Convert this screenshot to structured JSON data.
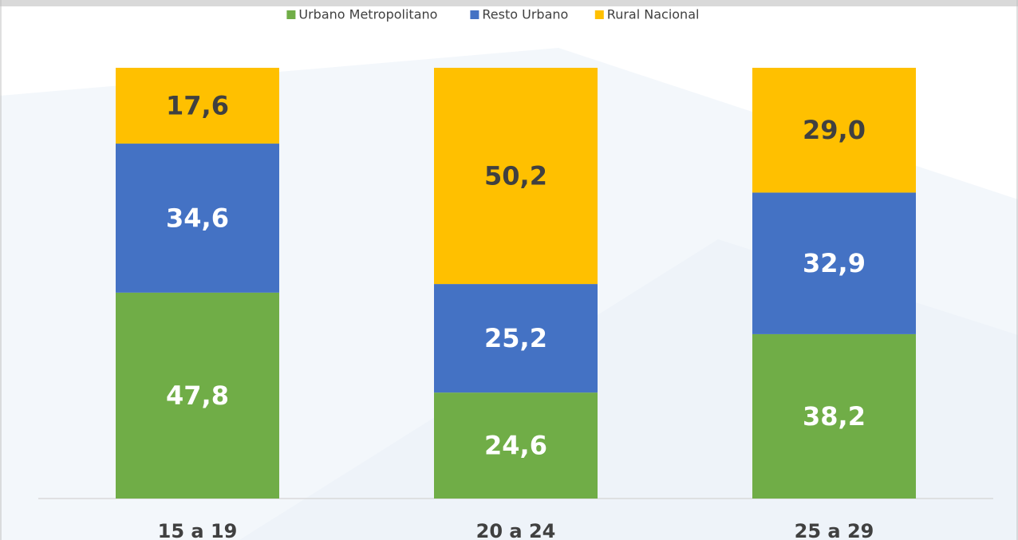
{
  "chart_data": {
    "type": "stacked_bar",
    "categories": [
      "15 a 19",
      "20 a 24",
      "25 a 29"
    ],
    "series": [
      {
        "name": "Urbano Metropolitano",
        "color": "#70ad47",
        "values": [
          47.8,
          24.6,
          38.2
        ],
        "value_labels": [
          "47,8",
          "24,6",
          "38,2"
        ],
        "label_color": "#ffffff"
      },
      {
        "name": "Resto Urbano",
        "color": "#4472c4",
        "values": [
          34.6,
          25.2,
          32.9
        ],
        "value_labels": [
          "34,6",
          "25,2",
          "32,9"
        ],
        "label_color": "#ffffff"
      },
      {
        "name": "Rural Nacional",
        "color": "#ffc000",
        "values": [
          17.6,
          50.2,
          29.0
        ],
        "value_labels": [
          "17,6",
          "50,2",
          "29,0"
        ],
        "label_color": "#404040"
      }
    ],
    "legend": "top"
  }
}
